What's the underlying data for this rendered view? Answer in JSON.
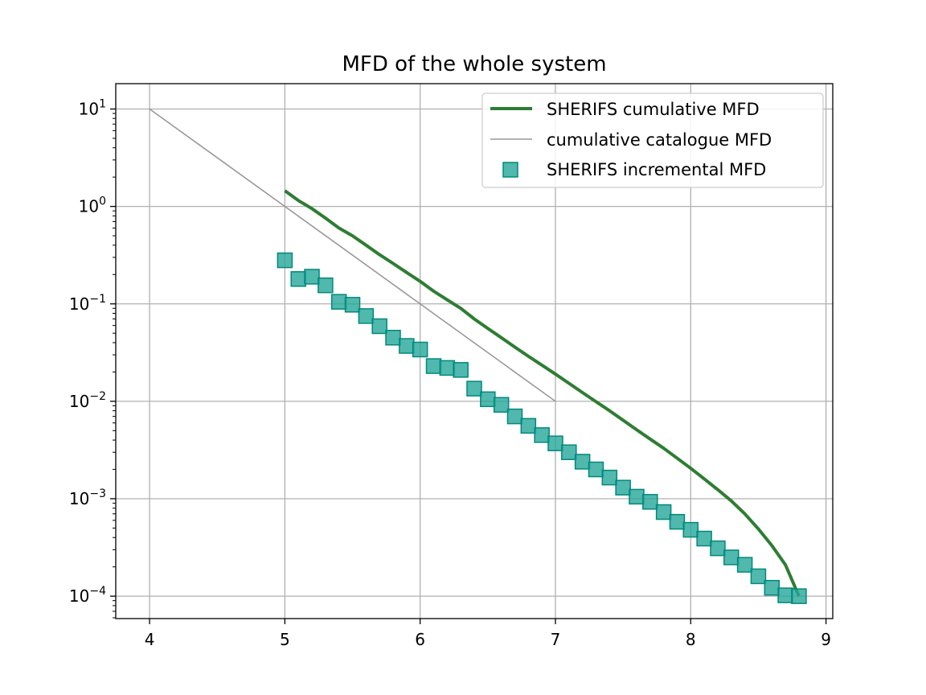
{
  "chart_data": {
    "type": "line",
    "title": "MFD of the whole system",
    "xlabel": "",
    "ylabel": "",
    "xlim": [
      3.75,
      9.05
    ],
    "ylim_log10": [
      -4.23,
      1.26
    ],
    "yscale": "log",
    "grid": true,
    "legend_position": "top-right",
    "x_ticks": [
      4,
      5,
      6,
      7,
      8,
      9
    ],
    "y_ticks": [
      {
        "base": "10",
        "exp": "1",
        "log10": 1
      },
      {
        "base": "10",
        "exp": "0",
        "log10": 0
      },
      {
        "base": "10",
        "exp": "−1",
        "log10": -1
      },
      {
        "base": "10",
        "exp": "−2",
        "log10": -2
      },
      {
        "base": "10",
        "exp": "−3",
        "log10": -3
      },
      {
        "base": "10",
        "exp": "−4",
        "log10": -4
      }
    ],
    "series": [
      {
        "name": "SHERIFS cumulative MFD",
        "style": "line",
        "color": "#2e7d32",
        "x": [
          5.0,
          5.1,
          5.2,
          5.3,
          5.4,
          5.5,
          5.6,
          5.7,
          5.8,
          5.9,
          6.0,
          6.1,
          6.2,
          6.3,
          6.4,
          6.5,
          6.6,
          6.7,
          6.8,
          6.9,
          7.0,
          7.1,
          7.2,
          7.3,
          7.4,
          7.5,
          7.6,
          7.7,
          7.8,
          7.9,
          8.0,
          8.1,
          8.2,
          8.3,
          8.4,
          8.5,
          8.6,
          8.7,
          8.8
        ],
        "y": [
          1.45,
          1.15,
          0.95,
          0.76,
          0.6,
          0.5,
          0.4,
          0.32,
          0.26,
          0.21,
          0.17,
          0.135,
          0.11,
          0.09,
          0.07,
          0.056,
          0.045,
          0.036,
          0.029,
          0.0235,
          0.019,
          0.0153,
          0.0123,
          0.0099,
          0.008,
          0.0064,
          0.0051,
          0.0041,
          0.0033,
          0.0026,
          0.00205,
          0.0016,
          0.00124,
          0.00095,
          0.0007,
          0.00049,
          0.00033,
          0.00021,
          0.0001
        ]
      },
      {
        "name": "cumulative catalogue MFD",
        "style": "line",
        "color": "#999999",
        "x": [
          4,
          7
        ],
        "y": [
          10,
          0.01
        ]
      },
      {
        "name": "SHERIFS incremental MFD",
        "style": "square-markers",
        "color": "#26a69a",
        "x": [
          5.0,
          5.1,
          5.2,
          5.3,
          5.4,
          5.5,
          5.6,
          5.7,
          5.8,
          5.9,
          6.0,
          6.1,
          6.2,
          6.3,
          6.4,
          6.5,
          6.6,
          6.7,
          6.8,
          6.9,
          7.0,
          7.1,
          7.2,
          7.3,
          7.4,
          7.5,
          7.6,
          7.7,
          7.8,
          7.9,
          8.0,
          8.1,
          8.2,
          8.3,
          8.4,
          8.5,
          8.6,
          8.7,
          8.8
        ],
        "y": [
          0.28,
          0.18,
          0.19,
          0.155,
          0.105,
          0.098,
          0.075,
          0.059,
          0.045,
          0.037,
          0.034,
          0.023,
          0.022,
          0.021,
          0.0135,
          0.0105,
          0.0092,
          0.007,
          0.0056,
          0.0045,
          0.0037,
          0.003,
          0.0024,
          0.002,
          0.00165,
          0.0013,
          0.00105,
          0.00093,
          0.00073,
          0.00058,
          0.00048,
          0.00039,
          0.00031,
          0.00025,
          0.00021,
          0.00016,
          0.000122,
          0.000102,
          0.0001
        ]
      }
    ]
  }
}
